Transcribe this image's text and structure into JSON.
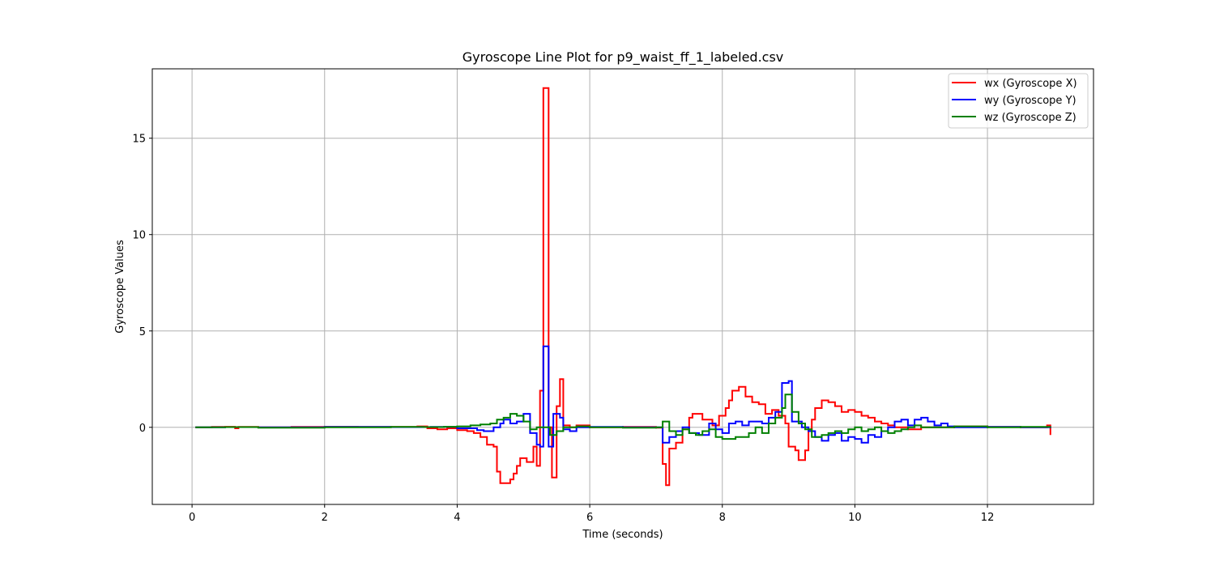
{
  "chart_data": {
    "type": "line",
    "title": "Gyroscope Line Plot for p9_waist_ff_1_labeled.csv",
    "xlabel": "Time (seconds)",
    "ylabel": "Gyroscope Values",
    "xlim": [
      -0.6,
      13.6
    ],
    "ylim": [
      -4.0,
      18.6
    ],
    "x_ticks": [
      0,
      2,
      4,
      6,
      8,
      10,
      12
    ],
    "y_ticks": [
      0,
      5,
      10,
      15
    ],
    "grid": true,
    "legend_position": "top-right",
    "line_style": "steps",
    "series": [
      {
        "name": "wx (Gyroscope X)",
        "color": "#ff0000",
        "points": [
          [
            0.05,
            0.0
          ],
          [
            0.3,
            0.02
          ],
          [
            0.5,
            0.03
          ],
          [
            0.65,
            -0.05
          ],
          [
            0.7,
            0.02
          ],
          [
            1.0,
            0.0
          ],
          [
            1.5,
            0.02
          ],
          [
            2.0,
            0.03
          ],
          [
            2.5,
            0.02
          ],
          [
            3.0,
            0.02
          ],
          [
            3.4,
            0.05
          ],
          [
            3.55,
            -0.05
          ],
          [
            3.7,
            -0.1
          ],
          [
            3.85,
            -0.05
          ],
          [
            4.0,
            -0.15
          ],
          [
            4.15,
            -0.2
          ],
          [
            4.25,
            -0.3
          ],
          [
            4.35,
            -0.5
          ],
          [
            4.45,
            -0.9
          ],
          [
            4.55,
            -1.0
          ],
          [
            4.6,
            -2.3
          ],
          [
            4.65,
            -2.9
          ],
          [
            4.8,
            -2.7
          ],
          [
            4.85,
            -2.4
          ],
          [
            4.9,
            -2.0
          ],
          [
            4.95,
            -1.6
          ],
          [
            5.05,
            -1.8
          ],
          [
            5.15,
            -1.0
          ],
          [
            5.2,
            -2.0
          ],
          [
            5.25,
            1.9
          ],
          [
            5.3,
            17.6
          ],
          [
            5.38,
            0.0
          ],
          [
            5.43,
            -2.6
          ],
          [
            5.5,
            1.1
          ],
          [
            5.55,
            2.5
          ],
          [
            5.6,
            0.1
          ],
          [
            5.7,
            0.0
          ],
          [
            5.8,
            0.1
          ],
          [
            6.0,
            0.0
          ],
          [
            6.5,
            0.02
          ],
          [
            7.0,
            -0.02
          ],
          [
            7.1,
            -1.9
          ],
          [
            7.15,
            -3.0
          ],
          [
            7.2,
            -1.1
          ],
          [
            7.3,
            -0.8
          ],
          [
            7.4,
            -0.1
          ],
          [
            7.5,
            0.5
          ],
          [
            7.55,
            0.7
          ],
          [
            7.7,
            0.4
          ],
          [
            7.85,
            0.1
          ],
          [
            7.95,
            0.6
          ],
          [
            8.05,
            1.0
          ],
          [
            8.1,
            1.4
          ],
          [
            8.15,
            1.9
          ],
          [
            8.25,
            2.1
          ],
          [
            8.35,
            1.6
          ],
          [
            8.45,
            1.3
          ],
          [
            8.55,
            1.2
          ],
          [
            8.65,
            0.7
          ],
          [
            8.75,
            0.9
          ],
          [
            8.85,
            0.6
          ],
          [
            8.95,
            0.2
          ],
          [
            9.0,
            -1.0
          ],
          [
            9.1,
            -1.2
          ],
          [
            9.15,
            -1.7
          ],
          [
            9.25,
            -1.2
          ],
          [
            9.3,
            -0.1
          ],
          [
            9.35,
            0.4
          ],
          [
            9.4,
            1.0
          ],
          [
            9.5,
            1.4
          ],
          [
            9.6,
            1.3
          ],
          [
            9.7,
            1.1
          ],
          [
            9.8,
            0.8
          ],
          [
            9.9,
            0.9
          ],
          [
            10.0,
            0.8
          ],
          [
            10.1,
            0.6
          ],
          [
            10.2,
            0.5
          ],
          [
            10.3,
            0.3
          ],
          [
            10.4,
            0.2
          ],
          [
            10.5,
            0.1
          ],
          [
            10.6,
            0.0
          ],
          [
            10.8,
            -0.1
          ],
          [
            11.0,
            0.0
          ],
          [
            11.5,
            0.05
          ],
          [
            12.0,
            0.02
          ],
          [
            12.5,
            0.0
          ],
          [
            12.9,
            0.1
          ],
          [
            12.95,
            -0.4
          ]
        ]
      },
      {
        "name": "wy (Gyroscope Y)",
        "color": "#0000ff",
        "points": [
          [
            0.05,
            0.0
          ],
          [
            0.5,
            0.01
          ],
          [
            1.0,
            0.0
          ],
          [
            2.0,
            0.02
          ],
          [
            3.0,
            0.01
          ],
          [
            3.6,
            0.02
          ],
          [
            4.0,
            -0.05
          ],
          [
            4.2,
            -0.05
          ],
          [
            4.3,
            -0.15
          ],
          [
            4.4,
            -0.2
          ],
          [
            4.55,
            0.0
          ],
          [
            4.65,
            0.2
          ],
          [
            4.7,
            0.4
          ],
          [
            4.8,
            0.2
          ],
          [
            4.9,
            0.3
          ],
          [
            5.0,
            0.7
          ],
          [
            5.1,
            -0.3
          ],
          [
            5.2,
            -0.9
          ],
          [
            5.25,
            -1.0
          ],
          [
            5.3,
            4.2
          ],
          [
            5.38,
            -1.0
          ],
          [
            5.45,
            0.7
          ],
          [
            5.55,
            0.5
          ],
          [
            5.6,
            -0.1
          ],
          [
            5.7,
            -0.2
          ],
          [
            5.8,
            0.0
          ],
          [
            6.0,
            0.02
          ],
          [
            6.5,
            0.0
          ],
          [
            7.0,
            0.0
          ],
          [
            7.1,
            -0.8
          ],
          [
            7.2,
            -0.5
          ],
          [
            7.3,
            -0.2
          ],
          [
            7.4,
            0.0
          ],
          [
            7.5,
            -0.3
          ],
          [
            7.65,
            -0.4
          ],
          [
            7.8,
            0.2
          ],
          [
            7.9,
            -0.1
          ],
          [
            8.0,
            -0.3
          ],
          [
            8.1,
            0.2
          ],
          [
            8.2,
            0.3
          ],
          [
            8.3,
            0.1
          ],
          [
            8.4,
            0.3
          ],
          [
            8.5,
            0.3
          ],
          [
            8.6,
            0.2
          ],
          [
            8.7,
            0.5
          ],
          [
            8.8,
            0.8
          ],
          [
            8.9,
            2.3
          ],
          [
            9.0,
            2.4
          ],
          [
            9.05,
            0.3
          ],
          [
            9.1,
            0.3
          ],
          [
            9.2,
            0.0
          ],
          [
            9.3,
            -0.2
          ],
          [
            9.4,
            -0.5
          ],
          [
            9.5,
            -0.7
          ],
          [
            9.6,
            -0.4
          ],
          [
            9.7,
            -0.3
          ],
          [
            9.8,
            -0.7
          ],
          [
            9.9,
            -0.5
          ],
          [
            10.0,
            -0.6
          ],
          [
            10.1,
            -0.8
          ],
          [
            10.2,
            -0.4
          ],
          [
            10.3,
            -0.5
          ],
          [
            10.4,
            -0.2
          ],
          [
            10.5,
            0.0
          ],
          [
            10.6,
            0.3
          ],
          [
            10.7,
            0.4
          ],
          [
            10.8,
            0.1
          ],
          [
            10.9,
            0.4
          ],
          [
            11.0,
            0.5
          ],
          [
            11.1,
            0.3
          ],
          [
            11.2,
            0.1
          ],
          [
            11.3,
            0.2
          ],
          [
            11.4,
            0.05
          ],
          [
            11.5,
            0.0
          ],
          [
            12.0,
            0.02
          ],
          [
            12.5,
            0.0
          ],
          [
            12.95,
            0.05
          ]
        ]
      },
      {
        "name": "wz (Gyroscope Z)",
        "color": "#008000",
        "points": [
          [
            0.05,
            0.0
          ],
          [
            0.5,
            0.01
          ],
          [
            1.0,
            -0.02
          ],
          [
            2.0,
            0.0
          ],
          [
            3.0,
            0.02
          ],
          [
            3.5,
            0.01
          ],
          [
            3.8,
            0.03
          ],
          [
            4.0,
            0.05
          ],
          [
            4.2,
            0.1
          ],
          [
            4.35,
            0.15
          ],
          [
            4.5,
            0.2
          ],
          [
            4.6,
            0.4
          ],
          [
            4.7,
            0.5
          ],
          [
            4.8,
            0.7
          ],
          [
            4.9,
            0.6
          ],
          [
            5.0,
            0.3
          ],
          [
            5.1,
            -0.1
          ],
          [
            5.2,
            0.0
          ],
          [
            5.3,
            0.0
          ],
          [
            5.4,
            -0.4
          ],
          [
            5.5,
            -0.2
          ],
          [
            5.6,
            0.0
          ],
          [
            5.8,
            0.05
          ],
          [
            6.0,
            0.0
          ],
          [
            6.5,
            -0.02
          ],
          [
            7.0,
            0.0
          ],
          [
            7.1,
            0.3
          ],
          [
            7.2,
            -0.2
          ],
          [
            7.3,
            -0.4
          ],
          [
            7.4,
            -0.1
          ],
          [
            7.5,
            -0.3
          ],
          [
            7.6,
            -0.4
          ],
          [
            7.7,
            -0.2
          ],
          [
            7.8,
            -0.1
          ],
          [
            7.9,
            -0.5
          ],
          [
            8.0,
            -0.6
          ],
          [
            8.2,
            -0.5
          ],
          [
            8.4,
            -0.3
          ],
          [
            8.5,
            0.0
          ],
          [
            8.6,
            -0.3
          ],
          [
            8.7,
            0.2
          ],
          [
            8.8,
            0.5
          ],
          [
            8.9,
            1.0
          ],
          [
            8.95,
            1.7
          ],
          [
            9.05,
            0.8
          ],
          [
            9.15,
            0.2
          ],
          [
            9.25,
            -0.1
          ],
          [
            9.35,
            -0.5
          ],
          [
            9.5,
            -0.4
          ],
          [
            9.6,
            -0.3
          ],
          [
            9.7,
            -0.2
          ],
          [
            9.8,
            -0.3
          ],
          [
            9.9,
            -0.1
          ],
          [
            10.0,
            0.0
          ],
          [
            10.1,
            -0.2
          ],
          [
            10.2,
            -0.1
          ],
          [
            10.3,
            0.0
          ],
          [
            10.4,
            -0.2
          ],
          [
            10.5,
            -0.3
          ],
          [
            10.6,
            -0.2
          ],
          [
            10.7,
            -0.1
          ],
          [
            10.8,
            0.0
          ],
          [
            10.9,
            0.1
          ],
          [
            11.0,
            0.0
          ],
          [
            11.5,
            0.05
          ],
          [
            12.0,
            0.0
          ],
          [
            12.5,
            0.02
          ],
          [
            12.95,
            0.05
          ]
        ]
      }
    ]
  }
}
